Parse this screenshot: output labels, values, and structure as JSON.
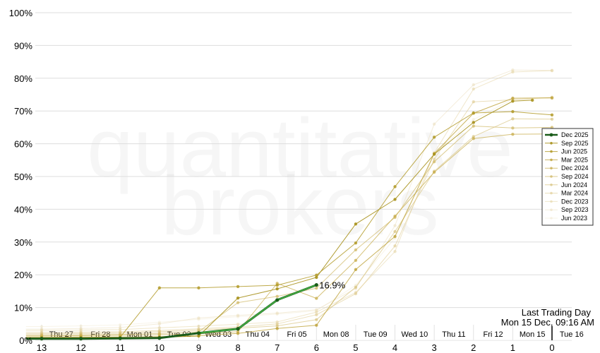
{
  "chart_data": {
    "type": "line",
    "xlabel": "",
    "ylabel": "",
    "xlim": [
      13.4,
      -0.5
    ],
    "ylim": [
      0,
      100
    ],
    "y_ticks": [
      "0%",
      "10%",
      "20%",
      "30%",
      "40%",
      "50%",
      "60%",
      "70%",
      "80%",
      "90%",
      "100%"
    ],
    "x_ticks": [
      {
        "x": 13,
        "label": "13"
      },
      {
        "x": 12,
        "label": "12"
      },
      {
        "x": 11,
        "label": "11"
      },
      {
        "x": 10,
        "label": "10"
      },
      {
        "x": 9,
        "label": "9"
      },
      {
        "x": 8,
        "label": "8"
      },
      {
        "x": 7,
        "label": "7"
      },
      {
        "x": 6,
        "label": "6"
      },
      {
        "x": 5,
        "label": "5"
      },
      {
        "x": 4,
        "label": "4"
      },
      {
        "x": 3,
        "label": "3"
      },
      {
        "x": 2,
        "label": "2"
      },
      {
        "x": 1,
        "label": "1"
      },
      {
        "x": 0,
        "label": "0"
      }
    ],
    "day_labels": [
      {
        "x": 12.5,
        "label": "Thu 27"
      },
      {
        "x": 11.5,
        "label": "Fri 28"
      },
      {
        "x": 10.5,
        "label": "Mon 01"
      },
      {
        "x": 9.5,
        "label": "Tue 02"
      },
      {
        "x": 8.5,
        "label": "Wed 03"
      },
      {
        "x": 7.5,
        "label": "Thu 04"
      },
      {
        "x": 6.5,
        "label": "Fri 05"
      },
      {
        "x": 5.5,
        "label": "Mon 08"
      },
      {
        "x": 4.5,
        "label": "Tue 09"
      },
      {
        "x": 3.5,
        "label": "Wed 10"
      },
      {
        "x": 2.5,
        "label": "Thu 11"
      },
      {
        "x": 1.5,
        "label": "Fri 12"
      },
      {
        "x": 0.5,
        "label": "Mon 15"
      },
      {
        "x": -0.5,
        "label": "Tue 16"
      }
    ],
    "grid": true,
    "legend_position": "right",
    "watermark": [
      "quantitative",
      "brokers"
    ],
    "annotation": {
      "label": "16.9%",
      "x": 6,
      "y": 16.9
    },
    "last_trading_day": {
      "title": "Last Trading Day",
      "date": "Mon 15 Dec, 09:16 AM",
      "x": 0
    },
    "series": [
      {
        "name": "Dec 2025",
        "color": "#1a5c1a",
        "width": 2.4,
        "opacity": 1,
        "highlight": true,
        "x": [
          13.4,
          13,
          12,
          11,
          10,
          9,
          8,
          7,
          6
        ],
        "y": [
          0.5,
          0.5,
          0.5,
          0.6,
          0.7,
          2.2,
          3.5,
          12.3,
          16.9
        ]
      },
      {
        "name": "Sep 2025",
        "color": "#a8921e",
        "width": 1,
        "opacity": 0.9,
        "x": [
          13.4,
          13,
          12,
          11,
          10,
          9,
          8,
          7,
          6,
          5,
          4,
          3,
          2,
          1,
          0.5
        ],
        "y": [
          0.6,
          0.6,
          0.6,
          0.7,
          0.9,
          1.3,
          12.9,
          15.7,
          19.2,
          35.5,
          43.0,
          56.8,
          66.5,
          73.0,
          73.3
        ]
      },
      {
        "name": "Jun 2025",
        "color": "#b39b2a",
        "width": 1,
        "opacity": 0.85,
        "x": [
          13.4,
          13,
          12,
          11,
          10,
          9,
          8,
          7,
          6,
          5,
          4,
          3,
          2,
          1,
          0
        ],
        "y": [
          0.8,
          0.8,
          0.9,
          0.9,
          16.0,
          16.0,
          16.4,
          16.8,
          19.9,
          29.7,
          46.9,
          62.0,
          69.4,
          69.8,
          68.8
        ]
      },
      {
        "name": "Mar 2025",
        "color": "#bea33a",
        "width": 1,
        "opacity": 0.8,
        "x": [
          13.4,
          13,
          12,
          11,
          10,
          9,
          8,
          7,
          6,
          5,
          4,
          3,
          2,
          1,
          0
        ],
        "y": [
          0.9,
          0.9,
          1.0,
          1.0,
          1.1,
          1.4,
          2.1,
          3.6,
          4.6,
          21.6,
          31.7,
          57.0,
          69.3,
          73.9,
          74.0
        ]
      },
      {
        "name": "Dec 2024",
        "color": "#c8ae4e",
        "width": 1,
        "opacity": 0.75,
        "x": [
          13.4,
          13,
          12,
          11,
          10,
          9,
          8,
          7,
          6,
          5,
          4,
          3,
          2,
          1,
          0
        ],
        "y": [
          1.3,
          1.3,
          1.4,
          1.5,
          1.7,
          2.0,
          2.6,
          17.4,
          12.8,
          24.4,
          37.9,
          51.3,
          61.6,
          62.9,
          63.0
        ]
      },
      {
        "name": "Sep 2024",
        "color": "#cfb762",
        "width": 1,
        "opacity": 0.7,
        "x": [
          13.4,
          13,
          12,
          11,
          10,
          9,
          8,
          7,
          6,
          5,
          4,
          3,
          2,
          1,
          0
        ],
        "y": [
          1.6,
          1.6,
          1.7,
          1.8,
          2.1,
          2.6,
          11.5,
          13.4,
          15.9,
          27.6,
          37.5,
          54.5,
          65.4,
          64.8,
          65.0
        ]
      },
      {
        "name": "Jun 2024",
        "color": "#d6c078",
        "width": 1,
        "opacity": 0.65,
        "x": [
          13.4,
          13,
          12,
          11,
          10,
          9,
          8,
          7,
          6,
          5,
          4,
          3,
          2,
          1,
          0
        ],
        "y": [
          2.0,
          2.0,
          2.1,
          2.2,
          2.6,
          3.1,
          3.7,
          4.4,
          6.3,
          16.2,
          33.2,
          51.6,
          62.2,
          67.6,
          67.5
        ]
      },
      {
        "name": "Mar 2024",
        "color": "#ddca8e",
        "width": 1,
        "opacity": 0.6,
        "x": [
          13.4,
          13,
          12,
          11,
          10,
          9,
          8,
          7,
          6,
          5,
          4,
          3,
          2,
          1,
          0
        ],
        "y": [
          2.4,
          2.4,
          2.5,
          2.6,
          3.0,
          3.5,
          4.1,
          5.0,
          7.8,
          14.2,
          28.8,
          55.3,
          72.8,
          73.4,
          74.2
        ]
      },
      {
        "name": "Dec 2023",
        "color": "#e3d3a3",
        "width": 1,
        "opacity": 0.55,
        "x": [
          13.4,
          13,
          12,
          11,
          10,
          9,
          8,
          7,
          6,
          5,
          4,
          3,
          2,
          1,
          0
        ],
        "y": [
          3.0,
          3.0,
          3.1,
          3.3,
          3.8,
          4.3,
          4.9,
          5.6,
          8.6,
          14.6,
          27.1,
          57.2,
          76.7,
          81.9,
          82.3
        ]
      },
      {
        "name": "Sep 2023",
        "color": "#e9dcb7",
        "width": 1,
        "opacity": 0.5,
        "x": [
          13.4,
          13,
          12,
          11,
          10,
          9,
          8,
          7,
          6,
          5,
          4,
          3,
          2,
          1,
          0
        ],
        "y": [
          3.4,
          3.4,
          3.6,
          3.9,
          5.0,
          6.8,
          7.6,
          8.3,
          9.3,
          15.8,
          35.0,
          66.0,
          78.0,
          82.5,
          82.4
        ]
      },
      {
        "name": "Jun 2023",
        "color": "#efe6cc",
        "width": 1,
        "opacity": 0.45,
        "x": [
          13.4,
          13,
          12,
          11,
          10,
          9,
          8,
          7,
          6,
          5,
          4,
          3,
          2,
          1,
          0
        ],
        "y": [
          4.2,
          4.2,
          4.4,
          4.7,
          5.5,
          6.4,
          7.2,
          8.0,
          9.0,
          16.8,
          31.2,
          57.1,
          67.4,
          73.6,
          73.8
        ]
      }
    ]
  }
}
